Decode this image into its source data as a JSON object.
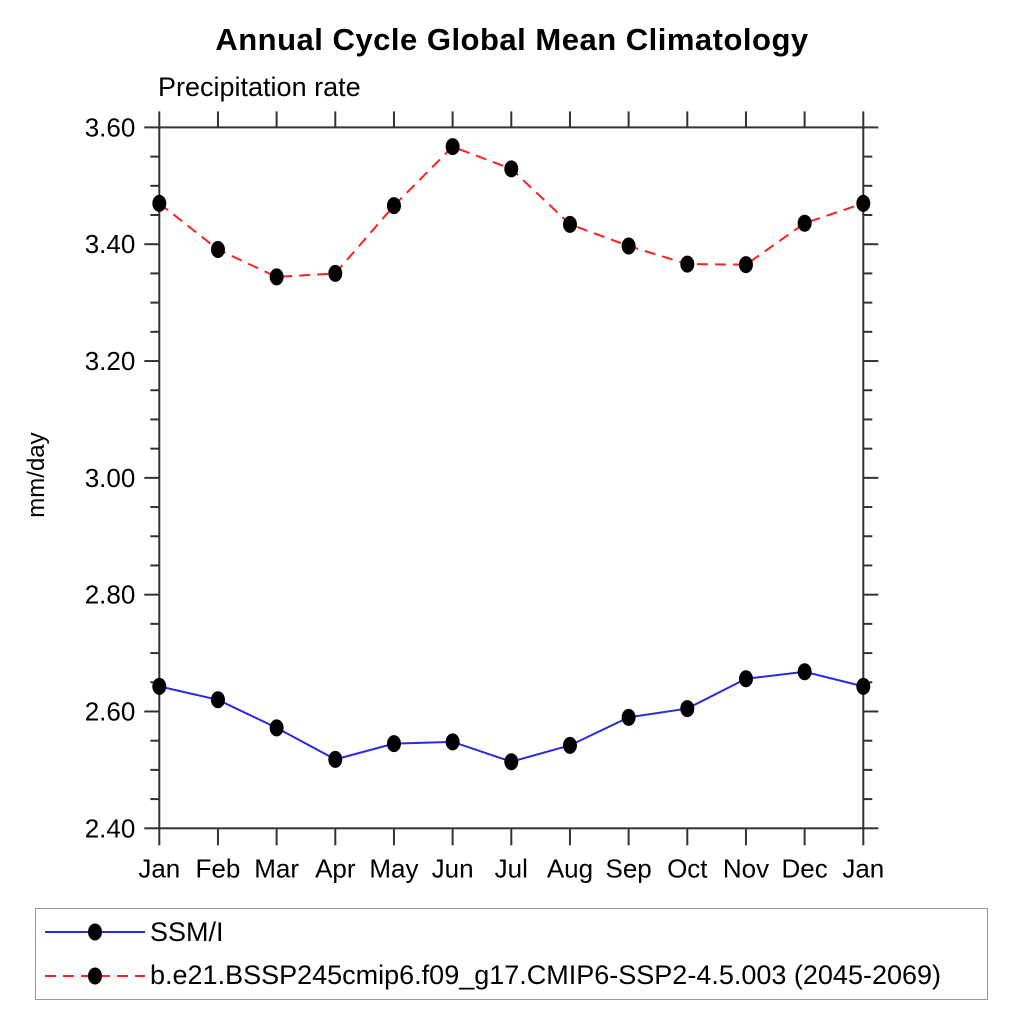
{
  "window": {
    "background": "#ffffff"
  },
  "header": {
    "title": "Annual Cycle Global Mean Climatology",
    "subtitle": "Precipitation rate"
  },
  "colors": {
    "axis": "#333333",
    "marker": "#000000",
    "ssmi_line": "#2a2ae0",
    "model_line": "#ff2020",
    "legend_border": "#9a9a9a"
  },
  "chart_data": {
    "type": "line",
    "title": "Annual Cycle Global Mean Climatology",
    "subtitle": "Precipitation rate",
    "xlabel": "",
    "ylabel": "mm/day",
    "categories": [
      "Jan",
      "Feb",
      "Mar",
      "Apr",
      "May",
      "Jun",
      "Jul",
      "Aug",
      "Sep",
      "Oct",
      "Nov",
      "Dec",
      "Jan"
    ],
    "ylim": [
      2.4,
      3.6
    ],
    "ytick_major_interval": 0.2,
    "ytick_minor_interval": 0.05,
    "ytick_labels": [
      "2.40",
      "2.60",
      "2.80",
      "3.00",
      "3.20",
      "3.40",
      "3.60"
    ],
    "grid": false,
    "legend_position": "bottom-left-box",
    "series": [
      {
        "name": "SSM/I",
        "line_style": "solid",
        "color": "#2a2ae0",
        "marker": "filled-circle",
        "marker_color": "#000000",
        "values": [
          2.643,
          2.62,
          2.572,
          2.518,
          2.545,
          2.548,
          2.514,
          2.542,
          2.59,
          2.605,
          2.656,
          2.668,
          2.643
        ]
      },
      {
        "name": "b.e21.BSSP245cmip6.f09_g17.CMIP6-SSP2-4.5.003 (2045-2069)",
        "line_style": "dashed",
        "color": "#ff2020",
        "marker": "filled-circle",
        "marker_color": "#000000",
        "values": [
          3.47,
          3.391,
          3.344,
          3.35,
          3.466,
          3.567,
          3.529,
          3.434,
          3.397,
          3.366,
          3.365,
          3.436,
          3.47
        ]
      }
    ]
  },
  "legend": {
    "entries": [
      {
        "label": "SSM/I"
      },
      {
        "label": "b.e21.BSSP245cmip6.f09_g17.CMIP6-SSP2-4.5.003 (2045-2069)"
      }
    ]
  }
}
